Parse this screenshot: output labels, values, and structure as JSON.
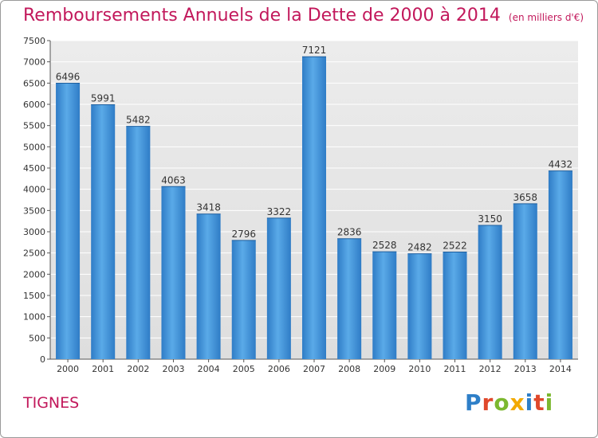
{
  "header": {
    "title": "Remboursements Annuels de la Dette de 2000 à 2014",
    "unit": "(en milliers d'€)"
  },
  "footer": {
    "place": "TIGNES",
    "logo_text": "Proxiti",
    "logo_colors": [
      "#2e7fc8",
      "#e0482b",
      "#7cb82f",
      "#f2a900",
      "#2e7fc8",
      "#e0482b",
      "#7cb82f"
    ]
  },
  "chart_data": {
    "type": "bar",
    "title": "Remboursements Annuels de la Dette de 2000 à 2014",
    "xlabel": "",
    "ylabel": "",
    "categories": [
      "2000",
      "2001",
      "2002",
      "2003",
      "2004",
      "2005",
      "2006",
      "2007",
      "2008",
      "2009",
      "2010",
      "2011",
      "2012",
      "2013",
      "2014"
    ],
    "values": [
      6496,
      5991,
      5482,
      4063,
      3418,
      2796,
      3322,
      7121,
      2836,
      2528,
      2482,
      2522,
      3150,
      3658,
      4432
    ],
    "ylim": [
      0,
      7500
    ],
    "yticks": [
      0,
      500,
      1000,
      1500,
      2000,
      2500,
      3000,
      3500,
      4000,
      4500,
      5000,
      5500,
      6000,
      6500,
      7000,
      7500
    ],
    "grid": true,
    "bar_color": "#3d8fd8",
    "plot_background": "#e6e6e6",
    "legend": "none"
  }
}
